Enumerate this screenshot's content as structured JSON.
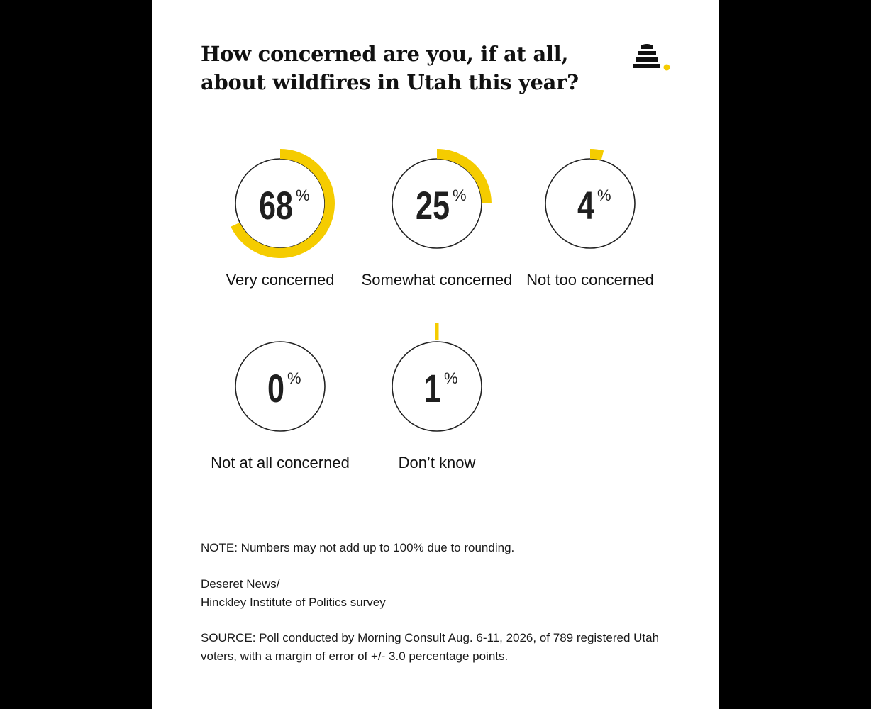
{
  "chart_data": {
    "type": "pie",
    "title": "How concerned are you, if at all, about wildfires in Utah this year?",
    "unit": "%",
    "categories": [
      "Very concerned",
      "Somewhat concerned",
      "Not too concerned",
      "Not at all concerned",
      "Don’t know"
    ],
    "values": [
      68,
      25,
      4,
      0,
      1
    ],
    "value_labels": [
      "68",
      "25",
      "4",
      "0",
      "1"
    ],
    "colors": {
      "accent": "#f5cc00",
      "ring": "#222222",
      "text": "#1f1f1f"
    }
  },
  "note": "NOTE: Numbers may not add up to 100% due to rounding.",
  "credit": {
    "line1": "Deseret News/",
    "line2": "Hinckley Institute of Politics survey"
  },
  "source": "SOURCE: Poll conducted by Morning Consult Aug. 6-11, 2026, of 789 registered Utah voters, with a margin of error of +/- 3.0 percentage points.",
  "logo_icon": "beehive-icon"
}
